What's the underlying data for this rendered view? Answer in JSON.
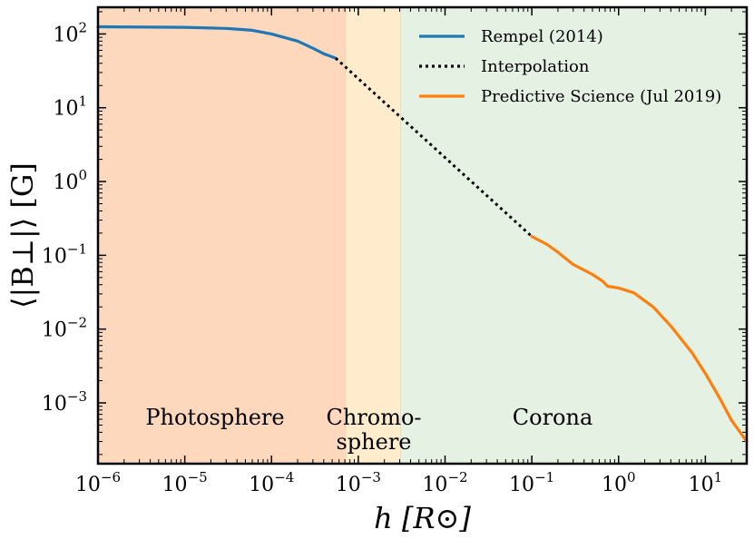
{
  "chart_data": {
    "type": "line",
    "x_scale": "log",
    "y_scale": "log",
    "xlim": [
      1e-06,
      30
    ],
    "ylim": [
      0.00015,
      230
    ],
    "xlabel": "h [R⊙]",
    "ylabel": "⟨|B⊥|⟩ [G]",
    "x_ticks": [
      {
        "value": 1e-06,
        "base": "10",
        "exp": "−6"
      },
      {
        "value": 1e-05,
        "base": "10",
        "exp": "−5"
      },
      {
        "value": 0.0001,
        "base": "10",
        "exp": "−4"
      },
      {
        "value": 0.001,
        "base": "10",
        "exp": "−3"
      },
      {
        "value": 0.01,
        "base": "10",
        "exp": "−2"
      },
      {
        "value": 0.1,
        "base": "10",
        "exp": "−1"
      },
      {
        "value": 1,
        "base": "10",
        "exp": "0"
      },
      {
        "value": 10,
        "base": "10",
        "exp": "1"
      }
    ],
    "y_ticks": [
      {
        "value": 0.001,
        "base": "10",
        "exp": "−3"
      },
      {
        "value": 0.01,
        "base": "10",
        "exp": "−2"
      },
      {
        "value": 0.1,
        "base": "10",
        "exp": "−1"
      },
      {
        "value": 1,
        "base": "10",
        "exp": "0"
      },
      {
        "value": 10,
        "base": "10",
        "exp": "1"
      },
      {
        "value": 100,
        "base": "10",
        "exp": "2"
      }
    ],
    "regions": [
      {
        "label": [
          "Photosphere"
        ],
        "x_range": [
          1e-06,
          0.00072
        ],
        "color": "#fdd8bd"
      },
      {
        "label": [
          "Chromo-",
          "sphere"
        ],
        "x_range": [
          0.00072,
          0.0031
        ],
        "color": "#feeccd"
      },
      {
        "label": [
          "Corona"
        ],
        "x_range": [
          0.0031,
          30
        ],
        "color": "#e4f1e3"
      }
    ],
    "legend_position": "top-right",
    "series": [
      {
        "name": "Rempel (2014)",
        "color": "#1f77b4",
        "style": "solid",
        "points": [
          [
            1e-06,
            125
          ],
          [
            1e-05,
            123
          ],
          [
            3e-05,
            119
          ],
          [
            6e-05,
            112
          ],
          [
            0.0001,
            100
          ],
          [
            0.0002,
            80
          ],
          [
            0.0003,
            64
          ],
          [
            0.0004,
            54
          ],
          [
            0.00055,
            47
          ]
        ]
      },
      {
        "name": "Interpolation",
        "color": "#000000",
        "style": "dotted",
        "points": [
          [
            0.00055,
            47
          ],
          [
            0.1,
            0.18
          ]
        ]
      },
      {
        "name": "Predictive Science (Jul 2019)",
        "color": "#ff7f0e",
        "style": "solid",
        "points": [
          [
            0.1,
            0.18
          ],
          [
            0.15,
            0.14
          ],
          [
            0.2,
            0.11
          ],
          [
            0.3,
            0.075
          ],
          [
            0.5,
            0.055
          ],
          [
            0.65,
            0.045
          ],
          [
            0.75,
            0.038
          ],
          [
            1.0,
            0.036
          ],
          [
            1.5,
            0.031
          ],
          [
            2.5,
            0.02
          ],
          [
            4,
            0.011
          ],
          [
            7,
            0.0048
          ],
          [
            10,
            0.0025
          ],
          [
            15,
            0.0011
          ],
          [
            20,
            0.00058
          ],
          [
            30,
            0.0003
          ]
        ]
      }
    ]
  }
}
